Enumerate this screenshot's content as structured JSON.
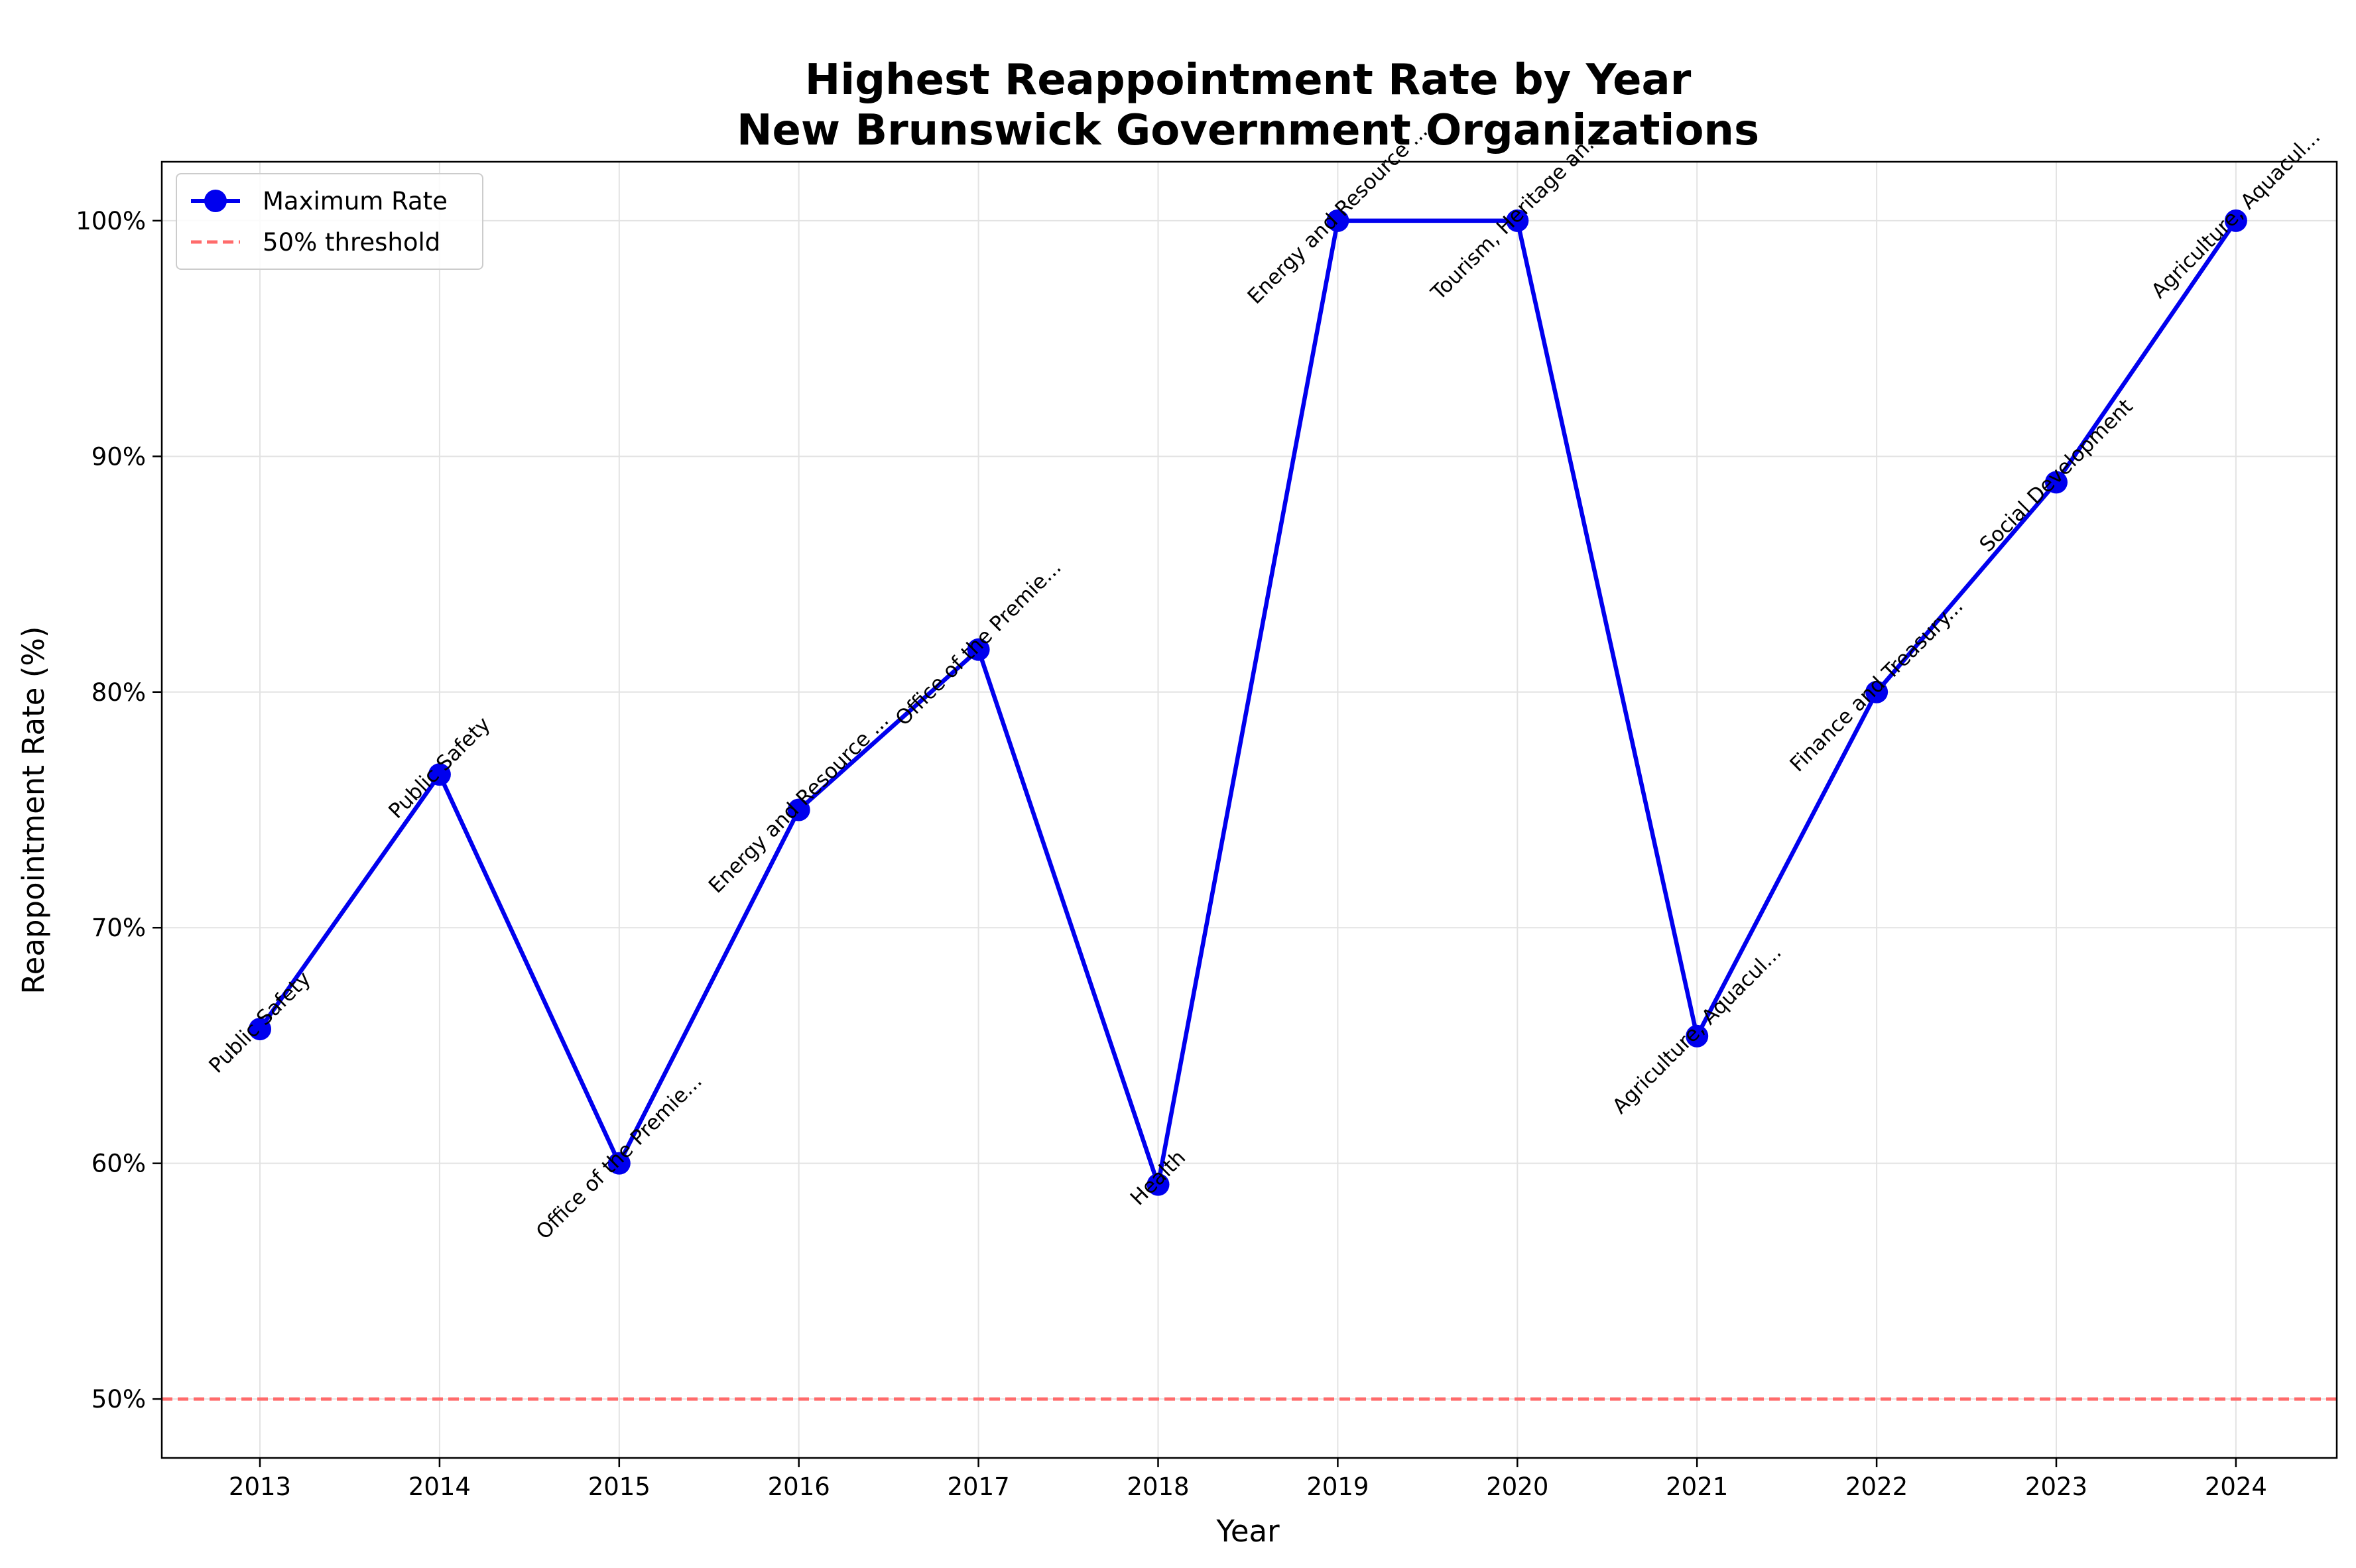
{
  "chart_data": {
    "type": "line",
    "title": "Highest Reappointment Rate by Year",
    "subtitle": "New Brunswick Government Organizations",
    "xlabel": "Year",
    "ylabel": "Reappointment Rate (%)",
    "categories": [
      "2013",
      "2014",
      "2015",
      "2016",
      "2017",
      "2018",
      "2019",
      "2020",
      "2021",
      "2022",
      "2023",
      "2024"
    ],
    "series": [
      {
        "name": "Maximum Rate",
        "color": "#0000ee",
        "values": [
          65.7,
          76.5,
          60.0,
          75.0,
          81.8,
          59.1,
          100.0,
          100.0,
          65.4,
          80.0,
          88.9,
          100.0
        ]
      }
    ],
    "annotations": [
      "Public Safety",
      "Public Safety",
      "Office of the Premie...",
      "Energy and Resource ...",
      "Office of the Premie...",
      "Health",
      "Energy and Resource ...",
      "Tourism, Heritage an...",
      "Agriculture, Aquacul...",
      "Finance and Treasury...",
      "Social Development",
      "Agriculture, Aquacul..."
    ],
    "threshold": {
      "name": "50% threshold",
      "value": 50,
      "color": "#ff6b6b"
    },
    "ylim": [
      47.5,
      102.5
    ],
    "yticks": [
      50,
      60,
      70,
      80,
      90,
      100
    ],
    "ytick_format": "%",
    "grid": true,
    "legend_position": "top-left"
  }
}
